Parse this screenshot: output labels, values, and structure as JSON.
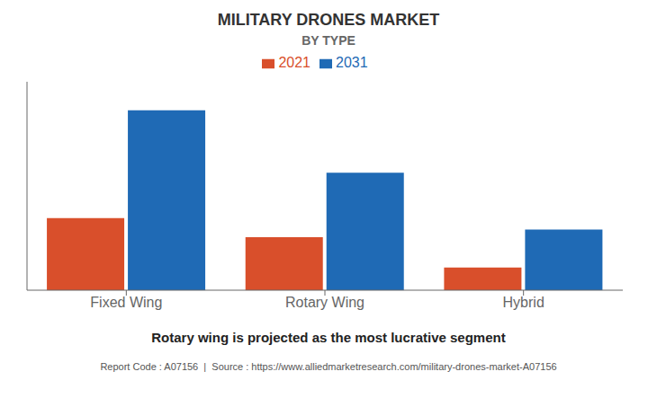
{
  "chart_data": {
    "type": "bar",
    "title": "MILITARY DRONES MARKET",
    "subtitle": "BY TYPE",
    "categories": [
      "Fixed Wing",
      "Rotary Wing",
      "Hybrid"
    ],
    "series": [
      {
        "name": "2021",
        "color": "#d94f2b",
        "values": [
          38,
          28,
          12
        ]
      },
      {
        "name": "2031",
        "color": "#1f6ab5",
        "values": [
          95,
          62,
          32
        ]
      }
    ],
    "ylim": [
      0,
      110
    ],
    "yticks": [],
    "grid": false,
    "legend": "top",
    "tick_labels": "x",
    "annotations": [
      "Rotary wing is projected as the most lucrative segment",
      "Report Code : A07156  |  Source : https://www.alliedmarketresearch.com/military-drones-market-A07156"
    ]
  }
}
